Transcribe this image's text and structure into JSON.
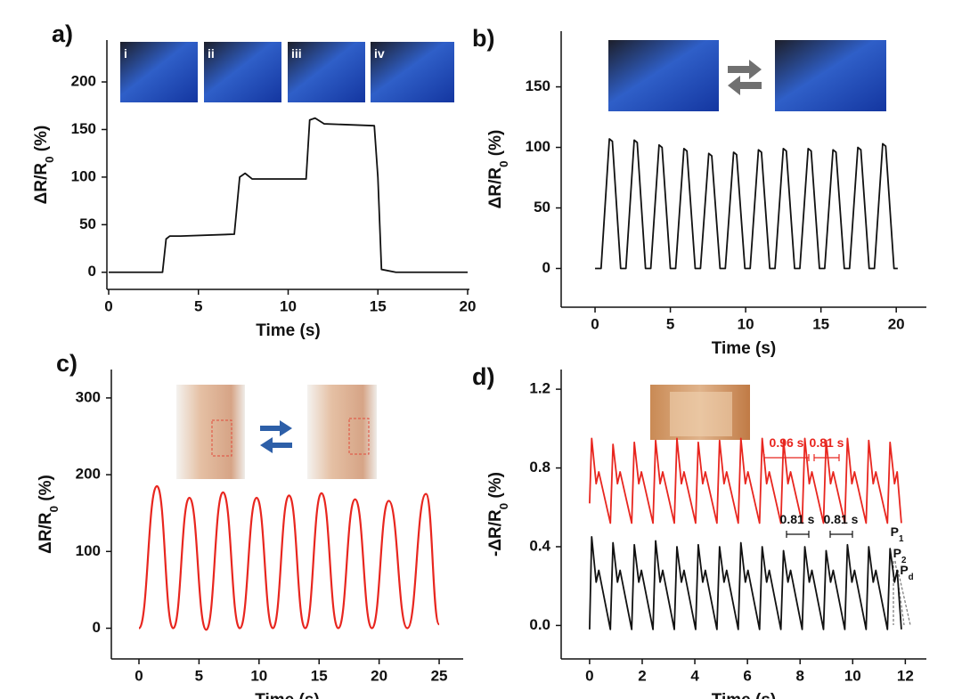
{
  "chart_data": [
    {
      "type": "line",
      "panel": "a)",
      "xlabel": "Time (s)",
      "ylabel": {
        "text": "ΔR/R",
        "sub": "0",
        "rest": " (%)"
      },
      "insets": [
        "i",
        "ii",
        "iii",
        "iv"
      ],
      "xlim": [
        -0.1,
        20.1
      ],
      "ylim": [
        -18,
        244
      ],
      "xticks": [
        0,
        5,
        10,
        15,
        20
      ],
      "yticks": [
        0,
        50,
        100,
        150,
        200
      ],
      "color": "#111111",
      "x": [
        0,
        3,
        3.2,
        3.4,
        4,
        7,
        7.3,
        7.6,
        8,
        11,
        11.2,
        11.5,
        12,
        14.8,
        15,
        15.2,
        16,
        20
      ],
      "values": [
        0,
        0,
        35,
        38,
        38,
        40,
        100,
        104,
        98,
        98,
        160,
        162,
        156,
        154,
        100,
        3,
        0,
        0
      ]
    },
    {
      "type": "line",
      "panel": "b)",
      "xlabel": "Time (s)",
      "ylabel": {
        "text": "ΔR/R",
        "sub": "0",
        "rest": " (%)"
      },
      "xlim": [
        -2.25,
        22
      ],
      "ylim": [
        -32,
        196
      ],
      "xticks": [
        0,
        5,
        10,
        15,
        20
      ],
      "yticks": [
        0,
        50,
        100,
        150
      ],
      "color": "#111111",
      "x": [
        0,
        0.4,
        0.95,
        1.15,
        1.7,
        2.05,
        2.6,
        2.8,
        3.35,
        3.7,
        4.25,
        4.45,
        5.0,
        5.35,
        5.9,
        6.1,
        6.65,
        7.0,
        7.55,
        7.75,
        8.3,
        8.65,
        9.2,
        9.4,
        9.95,
        10.3,
        10.85,
        11.05,
        11.6,
        11.95,
        12.5,
        12.7,
        13.25,
        13.6,
        14.15,
        14.35,
        14.9,
        15.25,
        15.8,
        16.0,
        16.55,
        16.9,
        17.45,
        17.65,
        18.2,
        18.55,
        19.1,
        19.3,
        19.85,
        20.1
      ],
      "values": [
        0,
        0,
        107,
        105,
        0,
        0,
        106,
        104,
        0,
        0,
        102,
        100,
        0,
        0,
        99,
        97,
        0,
        0,
        95,
        93,
        0,
        0,
        96,
        94,
        0,
        0,
        98,
        96,
        0,
        0,
        99,
        97,
        0,
        0,
        99,
        97,
        0,
        0,
        98,
        96,
        0,
        0,
        100,
        98,
        0,
        0,
        103,
        101,
        0,
        0
      ]
    },
    {
      "type": "line",
      "panel": "c)",
      "xlabel": "Time (s)",
      "ylabel": {
        "text": "ΔR/R",
        "sub": "0",
        "rest": " (%)"
      },
      "smooth": true,
      "xlim": [
        -2.3,
        27
      ],
      "ylim": [
        -40,
        337
      ],
      "xticks": [
        0,
        5,
        10,
        15,
        20,
        25
      ],
      "yticks": [
        0,
        100,
        200,
        300
      ],
      "color": "#e8261f",
      "x": [
        0,
        1.5,
        2.85,
        4.2,
        5.6,
        7.0,
        8.4,
        9.8,
        11.15,
        12.5,
        13.85,
        15.2,
        16.6,
        18.0,
        19.4,
        20.8,
        22.35,
        23.9,
        25
      ],
      "values": [
        0,
        185,
        0,
        170,
        -2,
        177,
        0,
        170,
        0,
        173,
        0,
        176,
        0,
        168,
        0,
        166,
        0,
        175,
        5
      ]
    },
    {
      "type": "line",
      "panel": "d)",
      "xlabel": "Time (s)",
      "ylabel": {
        "text": "-ΔR/R",
        "sub": "0",
        "rest": " (%)"
      },
      "xlim": [
        -1.08,
        12.8
      ],
      "ylim": [
        -0.17,
        1.3
      ],
      "xticks": [
        0,
        2,
        4,
        6,
        8,
        10,
        12
      ],
      "yticks": [
        {
          "value": 0,
          "label": "0.0"
        },
        0.4,
        0.8,
        1.2
      ],
      "annotations": [
        {
          "text": "0.96 s",
          "color": "#e8261f"
        },
        {
          "text": "0.81 s",
          "color": "#e8261f"
        },
        {
          "text": "0.81 s",
          "color": "#111111"
        },
        {
          "text": "0.81 s",
          "color": "#111111"
        },
        {
          "text": "P",
          "sub": "1",
          "color": "#111111"
        },
        {
          "text": "P",
          "sub": "2",
          "color": "#111111"
        },
        {
          "text": "P",
          "sub": "d",
          "color": "#111111"
        }
      ],
      "x": [
        0,
        0.08,
        0.25,
        0.35,
        0.79,
        0.89,
        1.06,
        1.16,
        1.6,
        1.7,
        1.87,
        1.97,
        2.41,
        2.51,
        2.68,
        2.78,
        3.22,
        3.32,
        3.49,
        3.59,
        4.03,
        4.13,
        4.3,
        4.4,
        4.84,
        4.94,
        5.11,
        5.21,
        5.65,
        5.75,
        5.92,
        6.02,
        6.46,
        6.56,
        6.73,
        6.83,
        7.27,
        7.37,
        7.54,
        7.64,
        8.08,
        8.18,
        8.35,
        8.45,
        8.89,
        8.99,
        9.16,
        9.26,
        9.7,
        9.8,
        9.97,
        10.07,
        10.51,
        10.61,
        10.78,
        10.88,
        11.32,
        11.42,
        11.59,
        11.69,
        11.85
      ],
      "series": [
        {
          "color": "#e8261f",
          "values": [
            0.62,
            0.95,
            0.72,
            0.78,
            0.52,
            0.92,
            0.72,
            0.78,
            0.52,
            0.93,
            0.72,
            0.78,
            0.52,
            0.94,
            0.72,
            0.78,
            0.52,
            0.95,
            0.72,
            0.78,
            0.52,
            0.93,
            0.72,
            0.78,
            0.52,
            0.94,
            0.72,
            0.78,
            0.52,
            0.95,
            0.72,
            0.78,
            0.52,
            0.95,
            0.72,
            0.78,
            0.52,
            0.94,
            0.72,
            0.78,
            0.52,
            0.95,
            0.72,
            0.78,
            0.52,
            0.94,
            0.72,
            0.78,
            0.52,
            0.95,
            0.72,
            0.78,
            0.52,
            0.94,
            0.72,
            0.78,
            0.52,
            0.93,
            0.72,
            0.78,
            0.52
          ]
        },
        {
          "color": "#111111",
          "values": [
            -0.02,
            0.45,
            0.22,
            0.28,
            -0.02,
            0.42,
            0.22,
            0.28,
            -0.02,
            0.41,
            0.22,
            0.28,
            -0.02,
            0.43,
            0.22,
            0.28,
            -0.02,
            0.4,
            0.22,
            0.28,
            -0.02,
            0.41,
            0.22,
            0.28,
            -0.02,
            0.4,
            0.22,
            0.28,
            -0.02,
            0.42,
            0.22,
            0.28,
            -0.02,
            0.4,
            0.22,
            0.28,
            -0.02,
            0.38,
            0.22,
            0.28,
            -0.02,
            0.4,
            0.22,
            0.28,
            -0.02,
            0.38,
            0.22,
            0.28,
            -0.02,
            0.41,
            0.22,
            0.28,
            -0.02,
            0.4,
            0.22,
            0.28,
            -0.02,
            0.39,
            0.22,
            0.28,
            -0.02
          ]
        }
      ]
    }
  ]
}
